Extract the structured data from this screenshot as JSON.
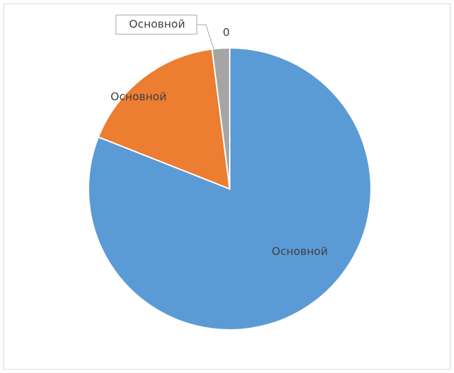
{
  "chart_data": {
    "type": "pie",
    "categories": [
      "Основной",
      "Основной",
      "Основной"
    ],
    "values": [
      81,
      17,
      2
    ],
    "colors": [
      "#5b9bd5",
      "#ed7d31",
      "#a5a5a5"
    ],
    "annotation": "0"
  }
}
